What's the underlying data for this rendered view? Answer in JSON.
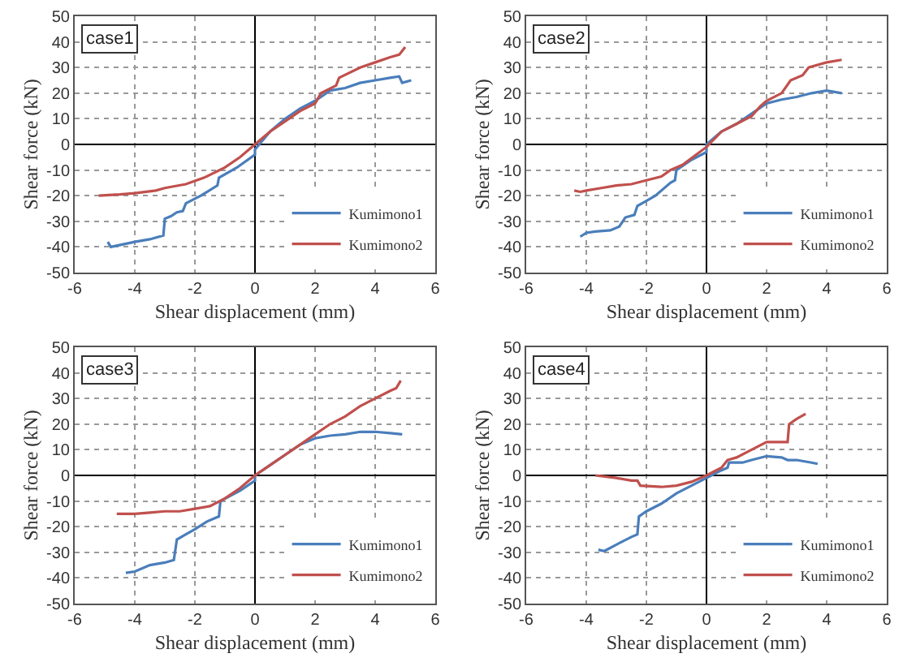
{
  "chart_data": [
    {
      "type": "line",
      "xlabel": "Shear displacement (mm)",
      "ylabel": "Shear force (kN)",
      "annotations": [
        "case1"
      ],
      "xlim": [
        -6,
        6
      ],
      "xticks": [
        -6,
        -4,
        -2,
        0,
        2,
        4,
        6
      ],
      "ylim": [
        -50,
        50
      ],
      "yticks": [
        -50,
        -40,
        -30,
        -20,
        -10,
        0,
        10,
        20,
        30,
        40,
        50
      ],
      "grid": true,
      "legend": "bottom right",
      "series": [
        {
          "name": "Kumimono1",
          "color": "#4a7ebb",
          "x": [
            -4.9,
            -4.8,
            -4,
            -3.5,
            -3.05,
            -3.0,
            -2.8,
            -2.6,
            -2.4,
            -2.3,
            -1.8,
            -1.25,
            -1.2,
            -0.6,
            0,
            0,
            0.5,
            1,
            1.5,
            2,
            2.5,
            3,
            3.5,
            4,
            4.5,
            4.8,
            4.9,
            5.2
          ],
          "values": [
            -38,
            -40,
            -38,
            -37,
            -35.5,
            -29,
            -28,
            -26.5,
            -26,
            -23,
            -20,
            -16,
            -13,
            -9,
            -4,
            -2,
            5,
            10,
            14,
            17,
            21,
            22,
            24,
            25,
            26,
            26.5,
            24,
            25
          ]
        },
        {
          "name": "Kumimono2",
          "color": "#c0504d",
          "x": [
            -5.2,
            -4.5,
            -4,
            -3.3,
            -3,
            -2.3,
            -1.7,
            -1,
            -0.5,
            0,
            0.5,
            1,
            1.5,
            2,
            2.2,
            2.7,
            2.8,
            3.5,
            4,
            4.5,
            4.8,
            5
          ],
          "values": [
            -20,
            -19.5,
            -19,
            -18,
            -17,
            -15.5,
            -13,
            -9,
            -5,
            0,
            5,
            9,
            13,
            16,
            20,
            23,
            26,
            30,
            32,
            34,
            35,
            38
          ]
        }
      ]
    },
    {
      "type": "line",
      "xlabel": "Shear displacement (mm)",
      "ylabel": "Shear force (kN)",
      "annotations": [
        "case2"
      ],
      "xlim": [
        -6,
        6
      ],
      "xticks": [
        -6,
        -4,
        -2,
        0,
        2,
        4,
        6
      ],
      "ylim": [
        -50,
        50
      ],
      "yticks": [
        -50,
        -40,
        -30,
        -20,
        -10,
        0,
        10,
        20,
        30,
        40,
        50
      ],
      "grid": true,
      "legend": "bottom right",
      "series": [
        {
          "name": "Kumimono1",
          "color": "#4a7ebb",
          "x": [
            -4.2,
            -4,
            -3.7,
            -3.2,
            -2.9,
            -2.7,
            -2.4,
            -2.3,
            -2,
            -1.7,
            -1.2,
            -1.05,
            -1.0,
            -0.5,
            0,
            0,
            0.5,
            1,
            1.5,
            2,
            2.5,
            3,
            3.5,
            4,
            4.5
          ],
          "values": [
            -36,
            -34.5,
            -34,
            -33.5,
            -32,
            -28.5,
            -27.5,
            -24,
            -22,
            -20,
            -15,
            -14,
            -10,
            -6,
            -3,
            0,
            5,
            8,
            12,
            16,
            17.5,
            18.5,
            20,
            21,
            20
          ]
        },
        {
          "name": "Kumimono2",
          "color": "#c0504d",
          "x": [
            -4.4,
            -4.2,
            -4,
            -3.5,
            -3,
            -2.5,
            -2,
            -1.5,
            -1.2,
            -0.8,
            0,
            0.5,
            1,
            1.5,
            1.8,
            2,
            2.5,
            2.8,
            3.2,
            3.4,
            4,
            4.5
          ],
          "values": [
            -18,
            -18.5,
            -18,
            -17,
            -16,
            -15.5,
            -14,
            -12.5,
            -10,
            -8,
            -1,
            5,
            8,
            11,
            15,
            17,
            20,
            25,
            27,
            30,
            32,
            33
          ]
        }
      ]
    },
    {
      "type": "line",
      "xlabel": "Shear displacement (mm)",
      "ylabel": "Shear force (kN)",
      "annotations": [
        "case3"
      ],
      "xlim": [
        -6,
        6
      ],
      "xticks": [
        -6,
        -4,
        -2,
        0,
        2,
        4,
        6
      ],
      "ylim": [
        -50,
        50
      ],
      "yticks": [
        -50,
        -40,
        -30,
        -20,
        -10,
        0,
        10,
        20,
        30,
        40,
        50
      ],
      "grid": true,
      "legend": "bottom right",
      "series": [
        {
          "name": "Kumimono1",
          "color": "#4a7ebb",
          "x": [
            -4.3,
            -4,
            -3.5,
            -3,
            -2.7,
            -2.6,
            -2.3,
            -2,
            -1.6,
            -1.2,
            -1.15,
            -0.5,
            0,
            0,
            0.5,
            1,
            1.5,
            2,
            2.5,
            3,
            3.5,
            4,
            4.5,
            4.9
          ],
          "values": [
            -38,
            -37.5,
            -35,
            -34,
            -33,
            -25,
            -23,
            -21,
            -18,
            -16,
            -10,
            -6,
            -2,
            0,
            4,
            8,
            12,
            14.5,
            15.5,
            16,
            17,
            17,
            16.5,
            16
          ]
        },
        {
          "name": "Kumimono2",
          "color": "#c0504d",
          "x": [
            -4.6,
            -4,
            -3.5,
            -3,
            -2.5,
            -2,
            -1.5,
            -1,
            -0.5,
            0,
            0.5,
            1,
            1.5,
            2,
            2.5,
            3,
            3.5,
            4,
            4.5,
            4.7,
            4.85
          ],
          "values": [
            -15,
            -15,
            -14.5,
            -14,
            -14,
            -13,
            -12,
            -9,
            -5,
            0,
            4,
            8,
            12,
            16,
            20,
            23,
            27,
            30,
            33,
            34,
            37
          ]
        }
      ]
    },
    {
      "type": "line",
      "xlabel": "Shear displacement (mm)",
      "ylabel": "Shear force (kN)",
      "annotations": [
        "case4"
      ],
      "xlim": [
        -6,
        6
      ],
      "xticks": [
        -6,
        -4,
        -2,
        0,
        2,
        4,
        6
      ],
      "ylim": [
        -50,
        50
      ],
      "yticks": [
        -50,
        -40,
        -30,
        -20,
        -10,
        0,
        10,
        20,
        30,
        40,
        50
      ],
      "grid": true,
      "legend": "bottom right",
      "series": [
        {
          "name": "Kumimono1",
          "color": "#4a7ebb",
          "x": [
            -3.6,
            -3.4,
            -3,
            -2.5,
            -2.3,
            -2.25,
            -2,
            -1.5,
            -1,
            -0.5,
            0,
            0.5,
            0.7,
            0.75,
            1.2,
            1.5,
            2,
            2.5,
            2.7,
            3,
            3.5,
            3.7
          ],
          "values": [
            -29,
            -29.5,
            -27,
            -24,
            -23,
            -16,
            -14,
            -11,
            -7,
            -4,
            -1,
            2,
            3,
            5,
            5,
            6,
            7.5,
            7,
            6,
            6,
            5,
            4.5
          ]
        },
        {
          "name": "Kumimono2",
          "color": "#c0504d",
          "x": [
            -3.7,
            -3,
            -2.5,
            -2.3,
            -2.2,
            -1.5,
            -1,
            -0.5,
            0,
            0.5,
            0.7,
            1,
            1.5,
            2,
            2.7,
            2.75,
            3,
            3.3
          ],
          "values": [
            0,
            -1,
            -2,
            -2,
            -4,
            -4.5,
            -4,
            -2.5,
            0,
            3,
            6,
            7,
            10,
            13,
            13,
            20,
            22,
            24
          ]
        }
      ]
    }
  ]
}
